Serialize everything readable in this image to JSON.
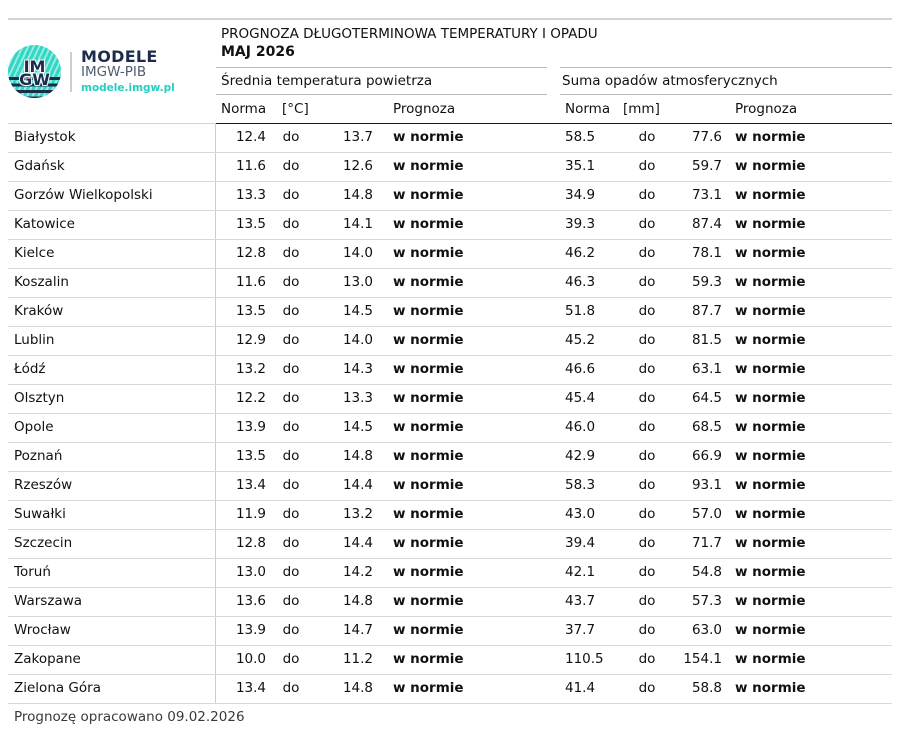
{
  "brand": {
    "monogram_top": "IM",
    "monogram_bottom": "GW",
    "name": "MODELE",
    "org": "IMGW-PIB",
    "url": "modele.imgw.pl"
  },
  "header": {
    "title": "PROGNOZA DŁUGOTERMINOWA TEMPERATURY I OPADU",
    "period": "MAJ 2026",
    "temp_section_label": "Średnia temperatura powietrza",
    "precip_section_label": "Suma opadów atmosferycznych",
    "norma_label": "Norma",
    "temp_unit": "[°C]",
    "precip_unit": "[mm]",
    "prognoza_label": "Prognoza",
    "range_separator": "do"
  },
  "rows": [
    {
      "city": "Białystok",
      "t_low": "12.4",
      "t_high": "13.7",
      "t_forecast": "w normie",
      "p_low": "58.5",
      "p_high": "77.6",
      "p_forecast": "w normie"
    },
    {
      "city": "Gdańsk",
      "t_low": "11.6",
      "t_high": "12.6",
      "t_forecast": "w normie",
      "p_low": "35.1",
      "p_high": "59.7",
      "p_forecast": "w normie"
    },
    {
      "city": "Gorzów Wielkopolski",
      "t_low": "13.3",
      "t_high": "14.8",
      "t_forecast": "w normie",
      "p_low": "34.9",
      "p_high": "73.1",
      "p_forecast": "w normie"
    },
    {
      "city": "Katowice",
      "t_low": "13.5",
      "t_high": "14.1",
      "t_forecast": "w normie",
      "p_low": "39.3",
      "p_high": "87.4",
      "p_forecast": "w normie"
    },
    {
      "city": "Kielce",
      "t_low": "12.8",
      "t_high": "14.0",
      "t_forecast": "w normie",
      "p_low": "46.2",
      "p_high": "78.1",
      "p_forecast": "w normie"
    },
    {
      "city": "Koszalin",
      "t_low": "11.6",
      "t_high": "13.0",
      "t_forecast": "w normie",
      "p_low": "46.3",
      "p_high": "59.3",
      "p_forecast": "w normie"
    },
    {
      "city": "Kraków",
      "t_low": "13.5",
      "t_high": "14.5",
      "t_forecast": "w normie",
      "p_low": "51.8",
      "p_high": "87.7",
      "p_forecast": "w normie"
    },
    {
      "city": "Lublin",
      "t_low": "12.9",
      "t_high": "14.0",
      "t_forecast": "w normie",
      "p_low": "45.2",
      "p_high": "81.5",
      "p_forecast": "w normie"
    },
    {
      "city": "Łódź",
      "t_low": "13.2",
      "t_high": "14.3",
      "t_forecast": "w normie",
      "p_low": "46.6",
      "p_high": "63.1",
      "p_forecast": "w normie"
    },
    {
      "city": "Olsztyn",
      "t_low": "12.2",
      "t_high": "13.3",
      "t_forecast": "w normie",
      "p_low": "45.4",
      "p_high": "64.5",
      "p_forecast": "w normie"
    },
    {
      "city": "Opole",
      "t_low": "13.9",
      "t_high": "14.5",
      "t_forecast": "w normie",
      "p_low": "46.0",
      "p_high": "68.5",
      "p_forecast": "w normie"
    },
    {
      "city": "Poznań",
      "t_low": "13.5",
      "t_high": "14.8",
      "t_forecast": "w normie",
      "p_low": "42.9",
      "p_high": "66.9",
      "p_forecast": "w normie"
    },
    {
      "city": "Rzeszów",
      "t_low": "13.4",
      "t_high": "14.4",
      "t_forecast": "w normie",
      "p_low": "58.3",
      "p_high": "93.1",
      "p_forecast": "w normie"
    },
    {
      "city": "Suwałki",
      "t_low": "11.9",
      "t_high": "13.2",
      "t_forecast": "w normie",
      "p_low": "43.0",
      "p_high": "57.0",
      "p_forecast": "w normie"
    },
    {
      "city": "Szczecin",
      "t_low": "12.8",
      "t_high": "14.4",
      "t_forecast": "w normie",
      "p_low": "39.4",
      "p_high": "71.7",
      "p_forecast": "w normie"
    },
    {
      "city": "Toruń",
      "t_low": "13.0",
      "t_high": "14.2",
      "t_forecast": "w normie",
      "p_low": "42.1",
      "p_high": "54.8",
      "p_forecast": "w normie"
    },
    {
      "city": "Warszawa",
      "t_low": "13.6",
      "t_high": "14.8",
      "t_forecast": "w normie",
      "p_low": "43.7",
      "p_high": "57.3",
      "p_forecast": "w normie"
    },
    {
      "city": "Wrocław",
      "t_low": "13.9",
      "t_high": "14.7",
      "t_forecast": "w normie",
      "p_low": "37.7",
      "p_high": "63.0",
      "p_forecast": "w normie"
    },
    {
      "city": "Zakopane",
      "t_low": "10.0",
      "t_high": "11.2",
      "t_forecast": "w normie",
      "p_low": "110.5",
      "p_high": "154.1",
      "p_forecast": "w normie"
    },
    {
      "city": "Zielona Góra",
      "t_low": "13.4",
      "t_high": "14.8",
      "t_forecast": "w normie",
      "p_low": "41.4",
      "p_high": "58.8",
      "p_forecast": "w normie"
    }
  ],
  "footer": {
    "note": "Prognozę opracowano 09.02.2026"
  },
  "colors": {
    "teal": "#2bd6c3",
    "navy": "#1d2c4c",
    "row_border": "#d9d9d9",
    "header_rule": "#1c1c1c",
    "bottom_rule": "#9e9e9e"
  }
}
